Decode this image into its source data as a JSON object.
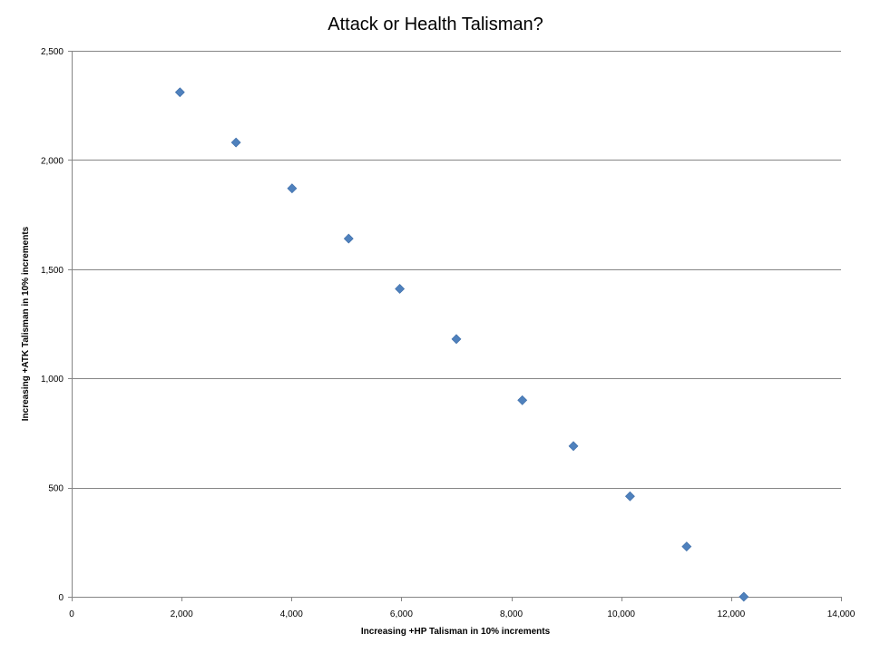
{
  "chart_data": {
    "type": "scatter",
    "title": "Attack or Health Talisman?",
    "xlabel": "Increasing +HP Talisman in 10% increments",
    "ylabel": "Increasing +ATK Talisman  in 10% increments",
    "xlim": [
      0,
      14000
    ],
    "ylim": [
      0,
      2500
    ],
    "x_ticks": [
      0,
      2000,
      4000,
      6000,
      8000,
      10000,
      12000,
      14000
    ],
    "y_ticks": [
      0,
      500,
      1000,
      1500,
      2000,
      2500
    ],
    "x_tick_labels": [
      "0",
      "2,000",
      "4,000",
      "6,000",
      "8,000",
      "10,000",
      "12,000",
      "14,000"
    ],
    "y_tick_labels": [
      "0",
      "500",
      "1,000",
      "1,500",
      "2,000",
      "2,500"
    ],
    "grid": "horizontal",
    "legend": "none",
    "marker": "diamond",
    "marker_color": "#4f81bd",
    "gridline_color": "#868686",
    "series": [
      {
        "x": [
          1970,
          2990,
          4010,
          5040,
          5970,
          7000,
          8200,
          9130,
          10160,
          11190,
          12230
        ],
        "y": [
          2310,
          2080,
          1870,
          1640,
          1410,
          1180,
          900,
          690,
          460,
          230,
          0
        ]
      }
    ]
  }
}
